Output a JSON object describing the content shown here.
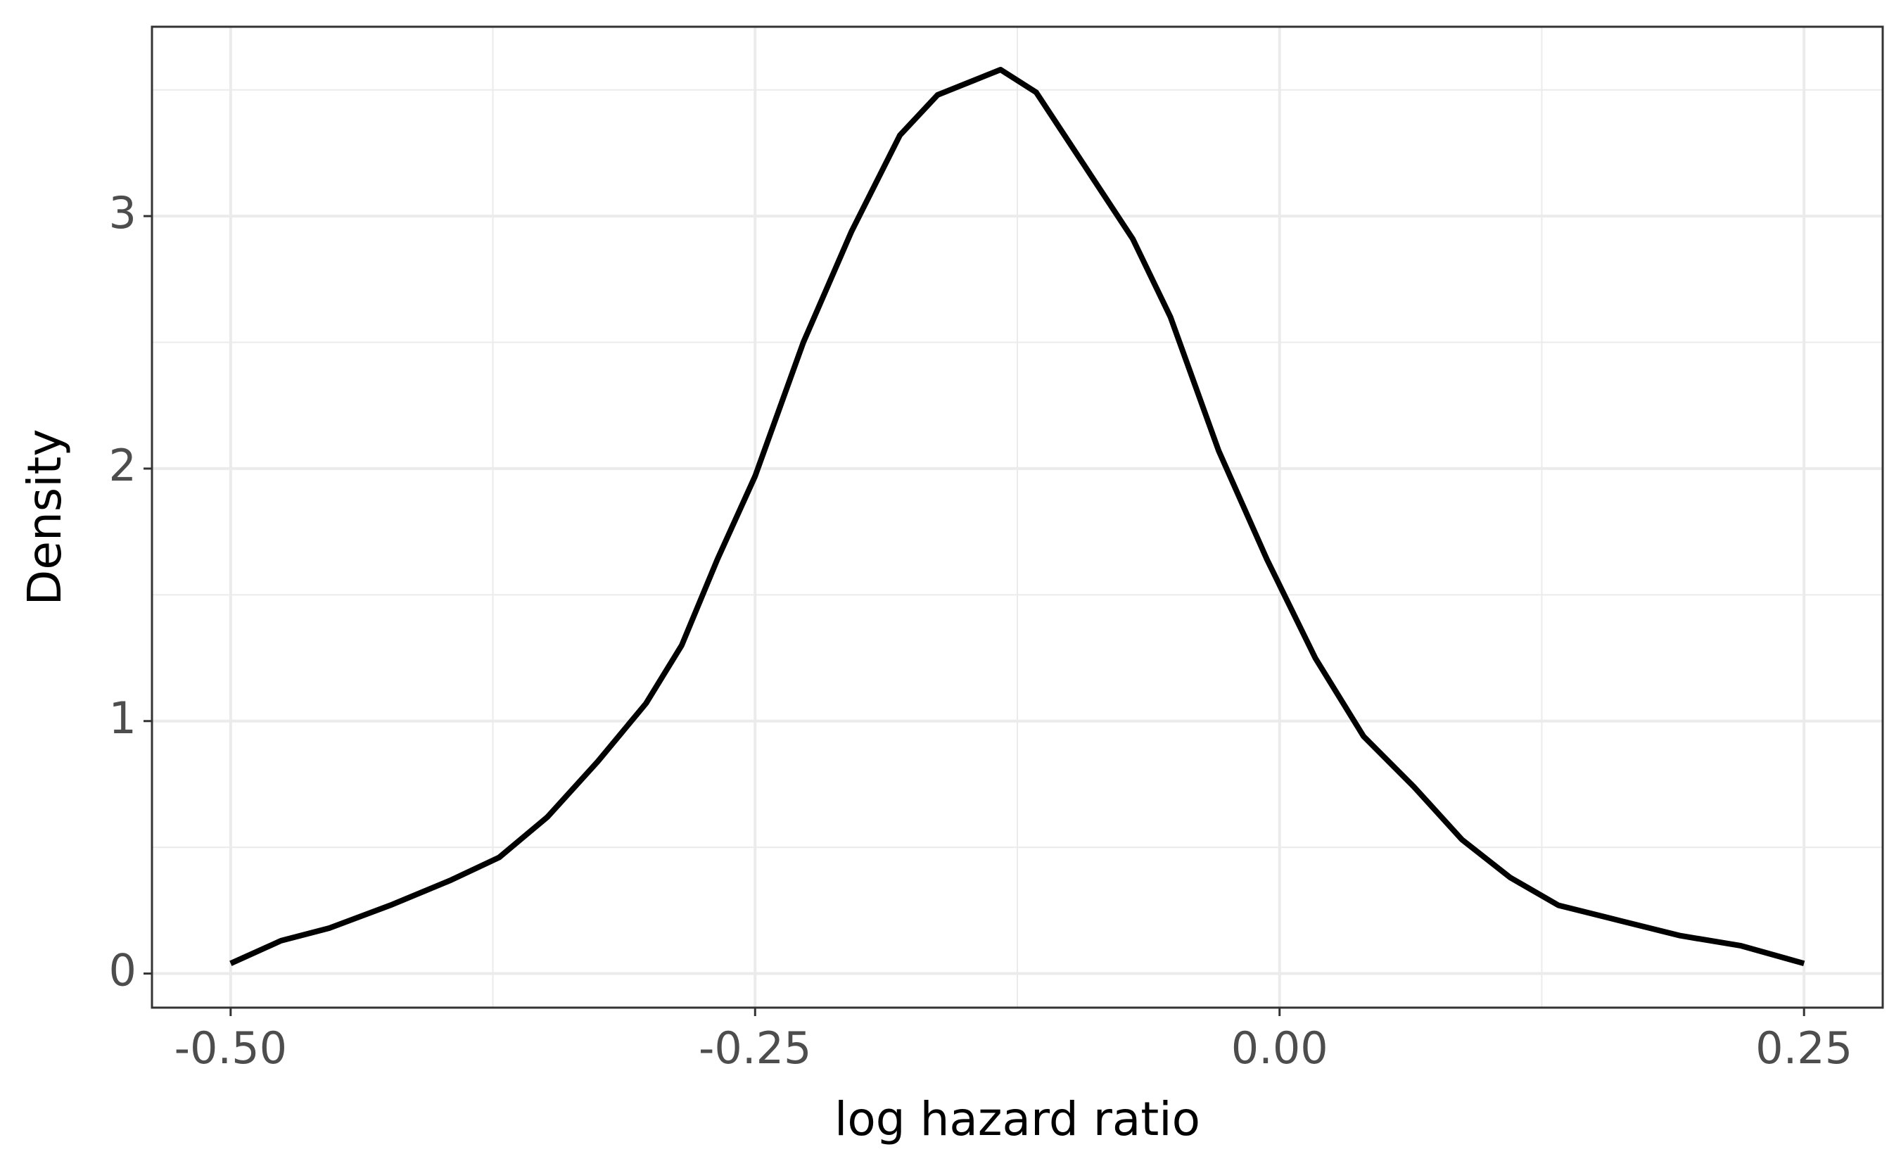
{
  "chart_data": {
    "type": "line",
    "x_label": "log hazard ratio",
    "y_label": "Density",
    "x": [
      -0.5,
      -0.476,
      -0.453,
      -0.424,
      -0.395,
      -0.372,
      -0.349,
      -0.325,
      -0.302,
      -0.285,
      -0.268,
      -0.25,
      -0.227,
      -0.204,
      -0.181,
      -0.163,
      -0.145,
      -0.133,
      -0.116,
      -0.093,
      -0.07,
      -0.052,
      -0.029,
      -0.006,
      0.017,
      0.04,
      0.064,
      0.087,
      0.11,
      0.133,
      0.162,
      0.191,
      0.22,
      0.25
    ],
    "series": [
      {
        "color": "#000000",
        "values": [
          0.04,
          0.13,
          0.18,
          0.27,
          0.37,
          0.46,
          0.62,
          0.84,
          1.07,
          1.3,
          1.64,
          1.97,
          2.5,
          2.94,
          3.32,
          3.48,
          3.54,
          3.58,
          3.49,
          3.2,
          2.91,
          2.6,
          2.07,
          1.64,
          1.25,
          0.94,
          0.74,
          0.53,
          0.38,
          0.27,
          0.21,
          0.15,
          0.11,
          0.04
        ]
      }
    ],
    "xlim": [
      -0.5375,
      0.2875
    ],
    "ylim": [
      -0.135,
      3.75
    ],
    "xticks": [
      {
        "value": -0.5,
        "label": "-0.50"
      },
      {
        "value": -0.25,
        "label": "-0.25"
      },
      {
        "value": 0,
        "label": "0.00"
      },
      0.25
    ],
    "yticks": [
      0,
      1,
      2,
      3
    ],
    "x_minor_grid": [
      -0.375,
      -0.125,
      0.125
    ],
    "y_minor_grid": [
      0.5,
      1.5,
      2.5,
      3.5
    ],
    "grid": true
  }
}
